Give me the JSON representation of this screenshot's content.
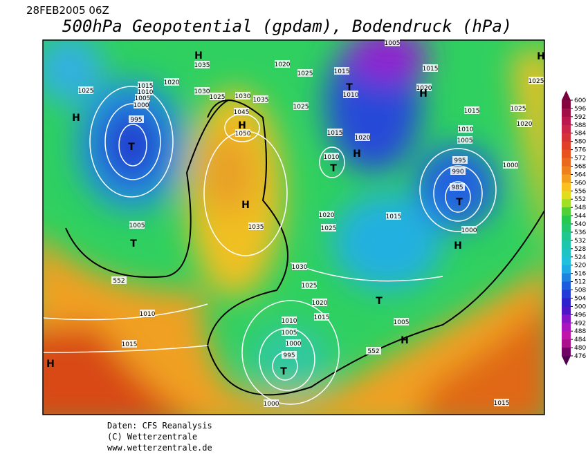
{
  "header": {
    "date": "28FEB2005 06Z",
    "title": "500hPa Geopotential (gpdam), Bodendruck (hPa)"
  },
  "map": {
    "labels": [
      "H",
      "T",
      "995",
      "1000",
      "1005",
      "1010",
      "1015",
      "1020",
      "1025",
      "H",
      "1035",
      "1030",
      "1025",
      "1030",
      "1035",
      "1045",
      "H",
      "1050",
      "H",
      "1035",
      "T",
      "1005",
      "552",
      "1010",
      "1015",
      "H",
      "1020",
      "1025",
      "1015",
      "T",
      "1010",
      "1005",
      "1015",
      "1020",
      "H",
      "1025",
      "1015",
      "1020",
      "H",
      "1010",
      "T",
      "1015",
      "1025",
      "1020",
      "1010",
      "1005",
      "995",
      "1000",
      "990",
      "985",
      "T",
      "1000",
      "H",
      "1015",
      "1020",
      "1025",
      "1030",
      "1025",
      "1020",
      "1015",
      "1010",
      "1005",
      "1000",
      "995",
      "T",
      "552",
      "T",
      "1005",
      "H",
      "1000",
      "1015",
      "H",
      "1025"
    ]
  },
  "colorbar": {
    "ticks": [
      600,
      596,
      592,
      588,
      584,
      580,
      576,
      572,
      568,
      564,
      560,
      556,
      552,
      548,
      544,
      540,
      536,
      532,
      528,
      524,
      520,
      516,
      512,
      508,
      504,
      500,
      496,
      492,
      488,
      484,
      480,
      476
    ]
  },
  "footer": {
    "lines": [
      "Daten: CFS Reanalysis",
      "(C) Wetterzentrale",
      "www.wetterzentrale.de"
    ]
  }
}
